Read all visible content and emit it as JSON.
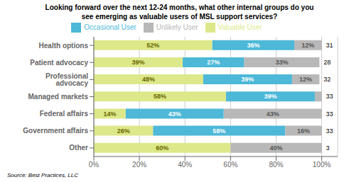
{
  "chart_data": {
    "type": "bar",
    "orientation": "horizontal",
    "stacked": true,
    "title": "Looking forward over the next 12-24 months, what other internal groups do you",
    "subtitle": "see emerging as valuable users of MSL support services?",
    "annotations": [
      "Source: Best Practices, LLC"
    ],
    "categories": [
      "Health options",
      "Patient advocacy",
      "Professional advocacy",
      "Managed markets",
      "Federal affairs",
      "Government affairs",
      "Other"
    ],
    "series": [
      {
        "name": "Valuable User",
        "color": "#dde88a",
        "values": [
          52,
          39,
          48,
          58,
          14,
          26,
          60
        ],
        "value_labels": [
          "52%",
          "39%",
          "48%",
          "58%",
          "14%",
          "26%",
          "60%"
        ]
      },
      {
        "name": "Occasional User",
        "color": "#4db8d8",
        "values": [
          36,
          27,
          39,
          39,
          43,
          58,
          0
        ],
        "value_labels": [
          "36%",
          "27%",
          "39%",
          "39%",
          "43%",
          "58%",
          null
        ]
      },
      {
        "name": "Unlikely User",
        "color": "#b8b8b8",
        "values": [
          12,
          33,
          12,
          3,
          43,
          16,
          40
        ],
        "value_labels": [
          "12%",
          "33%",
          "12%",
          null,
          "43%",
          "16%",
          "40%"
        ]
      }
    ],
    "n_values": [
      31,
      28,
      32,
      33,
      33,
      33,
      3
    ],
    "xlim": [
      0,
      107
    ],
    "xticks": [
      {
        "value": 0,
        "label": "0%"
      },
      {
        "value": 20,
        "label": "20%"
      },
      {
        "value": 40,
        "label": "40%"
      },
      {
        "value": 60,
        "label": "60%"
      },
      {
        "value": 80,
        "label": "80%"
      },
      {
        "value": 100,
        "label": "100%"
      }
    ],
    "grid": true,
    "legend": "top",
    "data_labels": true
  }
}
